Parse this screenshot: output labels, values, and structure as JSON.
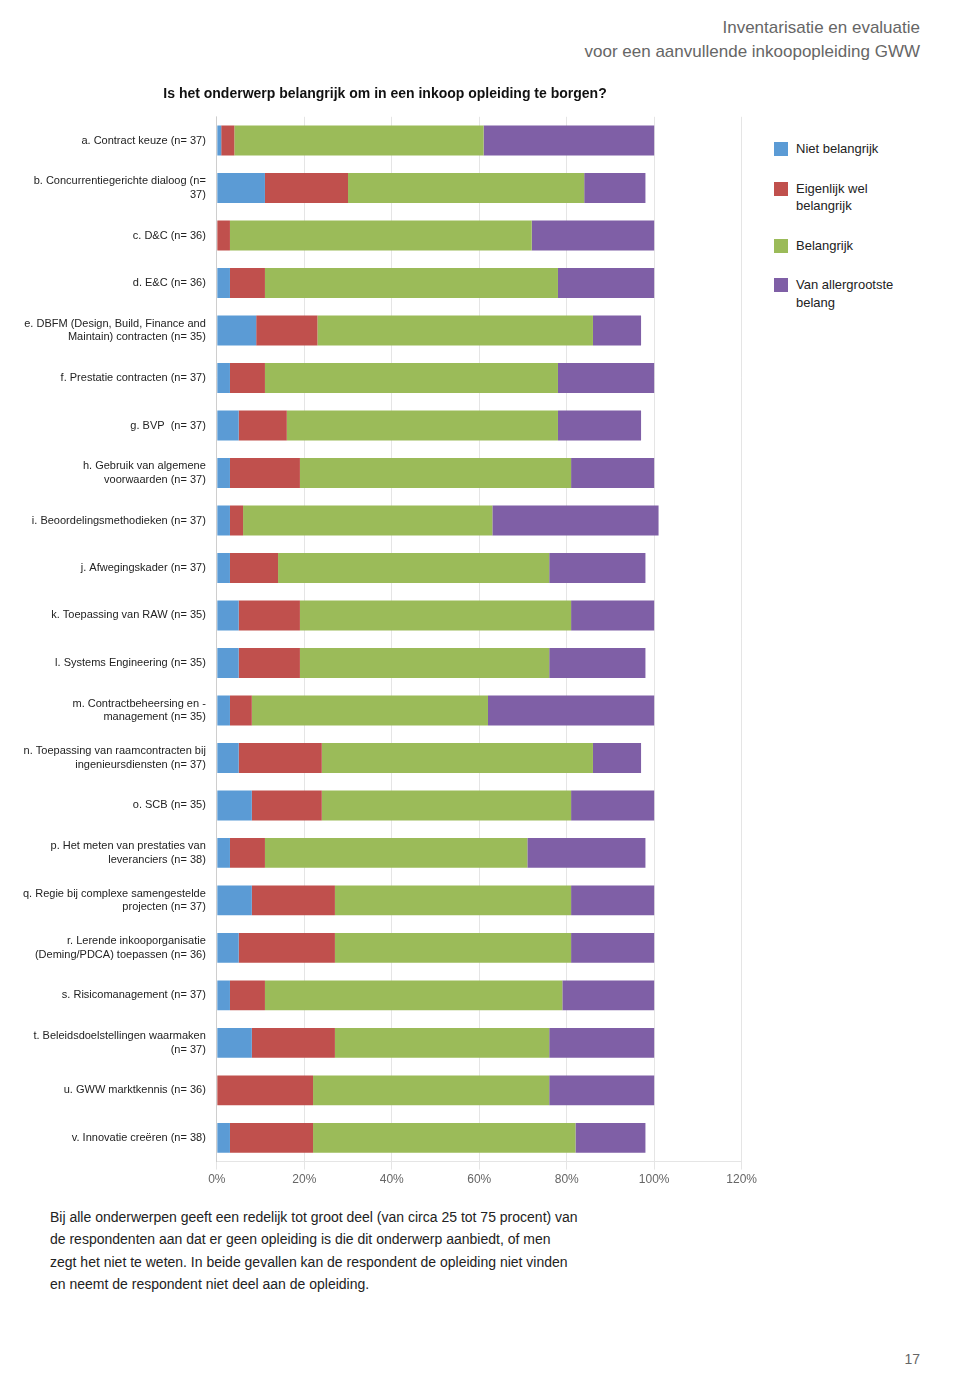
{
  "chart_data": {
    "type": "bar",
    "orientation": "horizontal",
    "stacked": true,
    "title": "Inventarisatie en evaluatie\nvoor een aanvullende inkoopopleiding GWW",
    "subtitle": "Is het onderwerp belangrijk om in een inkoop opleiding te borgen?",
    "annotations": [
      "Bij alle onderwerpen geeft een redelijk tot groot deel (van circa 25 tot 75 procent) van\nde respondenten aan dat er geen opleiding is die dit onderwerp aanbiedt, of men\nzegt het niet te weten. In beide gevallen kan de respondent de opleiding niet vinden\nen neemt de respondent niet deel aan de opleiding.",
      "17"
    ],
    "categories": [
      "a. Contract keuze (n= 37)",
      "b. Concurrentiegerichte dialoog (n=\n37)",
      "c. D&C (n= 36)",
      "d. E&C (n= 36)",
      "e. DBFM (Design, Build, Finance and\nMaintain) contracten (n= 35)",
      "f. Prestatie contracten (n= 37)",
      "g. BVP  (n= 37)",
      "h. Gebruik van algemene\nvoorwaarden (n= 37)",
      "i. Beoordelingsmethodieken (n= 37)",
      "j. Afwegingskader (n= 37)",
      "k. Toepassing van RAW (n= 35)",
      "l. Systems Engineering (n= 35)",
      "m. Contractbeheersing en -\nmanagement (n= 35)",
      "n. Toepassing van raamcontracten bij\ningenieursdiensten (n= 37)",
      "o. SCB (n= 35)",
      "p. Het meten van prestaties van\nleveranciers (n= 38)",
      "q. Regie bij complexe samengestelde\nprojecten (n= 37)",
      "r. Lerende inkooporganisatie\n(Deming/PDCA) toepassen (n= 36)",
      "s. Risicomanagement (n= 37)",
      "t. Beleidsdoelstellingen waarmaken\n(n= 37)",
      "u. GWW marktkennis (n= 36)",
      "v. Innovatie creëren (n= 38)"
    ],
    "series": [
      {
        "name": "Niet belangrijk",
        "color": "#5b9bd5",
        "values": [
          1,
          11,
          0,
          3,
          9,
          3,
          5,
          3,
          3,
          3,
          5,
          5,
          3,
          5,
          8,
          3,
          8,
          5,
          3,
          8,
          0,
          3
        ]
      },
      {
        "name": "Eigenlijk wel\nbelangrijk",
        "color": "#c0504d",
        "values": [
          3,
          19,
          3,
          8,
          14,
          8,
          11,
          16,
          3,
          11,
          14,
          14,
          5,
          19,
          16,
          8,
          19,
          22,
          8,
          19,
          22,
          19
        ]
      },
      {
        "name": "Belangrijk",
        "color": "#9bbb59",
        "values": [
          57,
          54,
          69,
          67,
          63,
          67,
          62,
          62,
          57,
          62,
          62,
          57,
          54,
          62,
          57,
          60,
          54,
          54,
          68,
          49,
          54,
          60
        ]
      },
      {
        "name": "Van allergrootste\nbelang",
        "color": "#7f5fa6",
        "values": [
          39,
          14,
          28,
          22,
          11,
          22,
          19,
          19,
          38,
          22,
          19,
          22,
          38,
          11,
          19,
          27,
          19,
          19,
          21,
          24,
          24,
          16
        ]
      }
    ],
    "xlim": [
      0,
      120
    ],
    "xticks": [
      {
        "value": 0,
        "label": "0%"
      },
      {
        "value": 20,
        "label": "20%"
      },
      {
        "value": 40,
        "label": "40%"
      },
      {
        "value": 60,
        "label": "60%"
      },
      {
        "value": 80,
        "label": "80%"
      },
      {
        "value": 100,
        "label": "100%"
      },
      {
        "value": 120,
        "label": "120%"
      }
    ],
    "grid": true,
    "legend": "right"
  }
}
